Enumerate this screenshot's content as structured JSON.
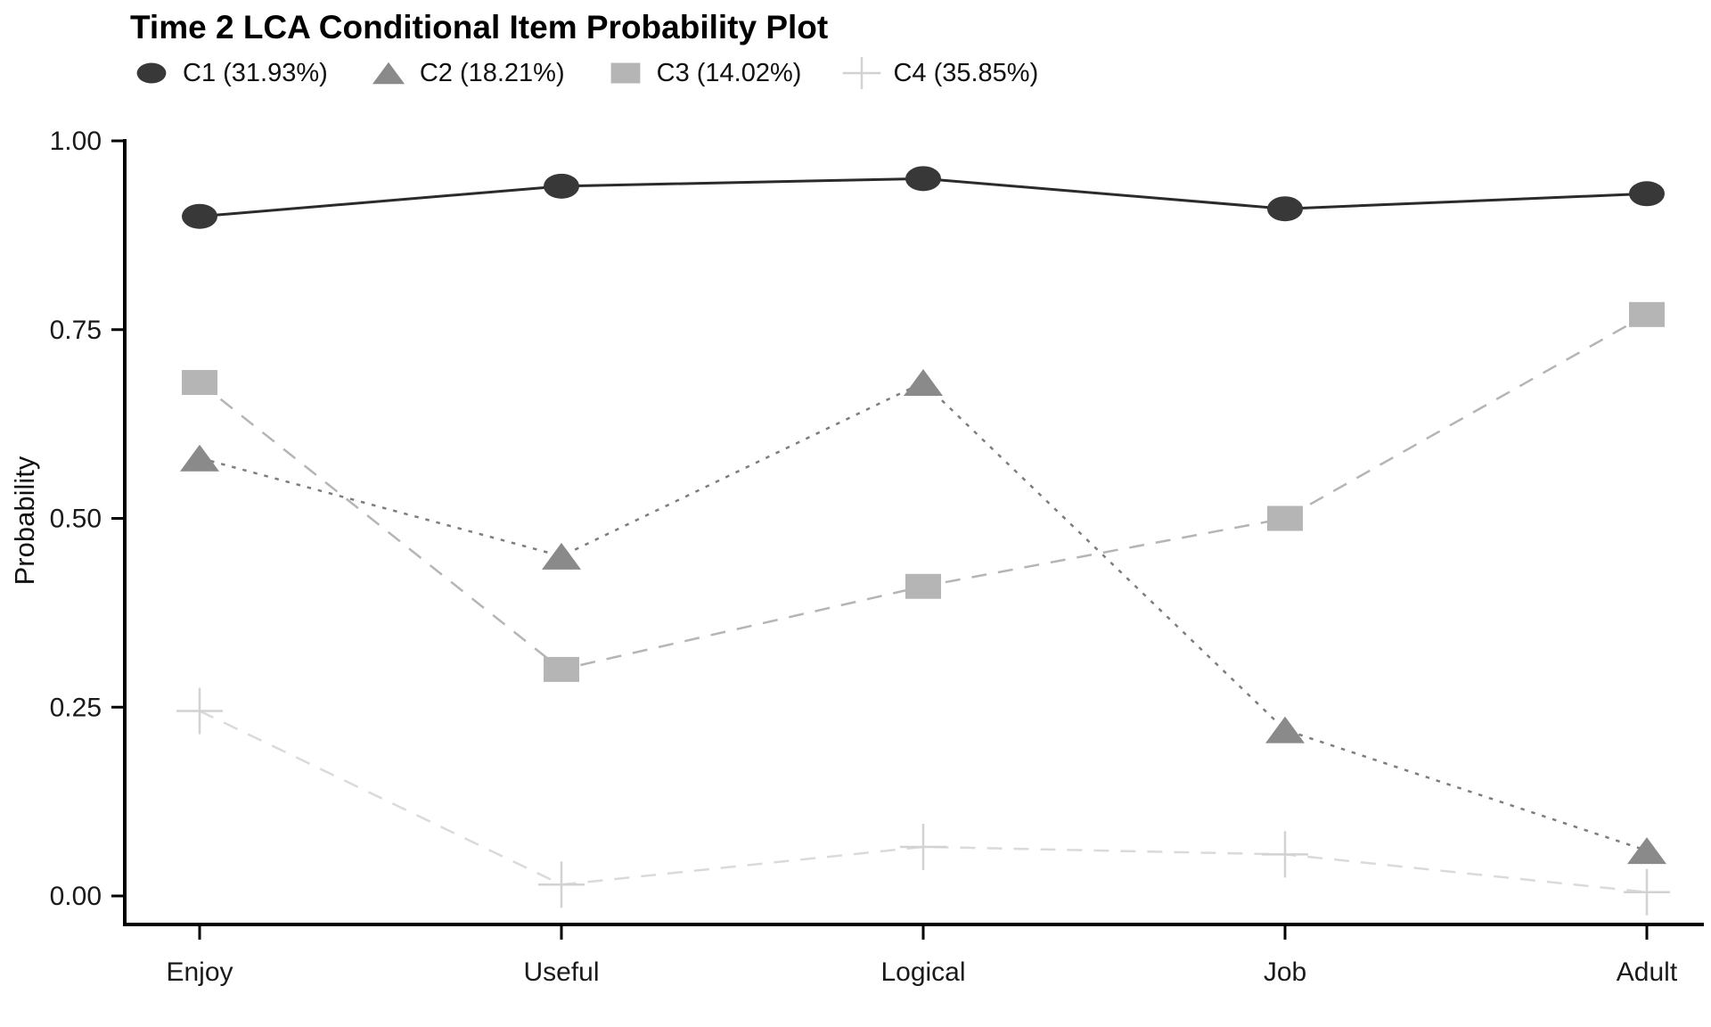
{
  "title": "Time 2 LCA Conditional Item Probability Plot",
  "chart_data": {
    "type": "line",
    "title": "Time 2 LCA Conditional Item Probability Plot",
    "categories": [
      "Enjoy",
      "Useful",
      "Logical",
      "Job",
      "Adult"
    ],
    "series": [
      {
        "name": "C1 (31.93%)",
        "marker": "circle",
        "line_style": "solid",
        "color": "#383838",
        "line_color": "#2b2b2b",
        "values": [
          0.9,
          0.94,
          0.95,
          0.91,
          0.93
        ]
      },
      {
        "name": "C2 (18.21%)",
        "marker": "triangle",
        "line_style": "dotted",
        "color": "#8a8a8a",
        "line_color": "#7d7d7d",
        "values": [
          0.58,
          0.45,
          0.68,
          0.22,
          0.06
        ]
      },
      {
        "name": "C3 (14.02%)",
        "marker": "square",
        "line_style": "dashed",
        "color": "#b5b5b5",
        "line_color": "#b5b5b5",
        "values": [
          0.68,
          0.3,
          0.41,
          0.5,
          0.77
        ]
      },
      {
        "name": "C4 (35.85%)",
        "marker": "plus",
        "line_style": "dashed",
        "color": "#d2d2d2",
        "line_color": "#dadada",
        "values": [
          0.245,
          0.015,
          0.065,
          0.055,
          0.005
        ]
      }
    ],
    "xlabel": "",
    "ylabel": "Probability",
    "ylim": [
      0,
      1
    ],
    "ytick_values": [
      1.0,
      0.75,
      0.5,
      0.25,
      0.0
    ],
    "ytick_labels": [
      "1.00",
      "0.75",
      "0.50",
      "0.25",
      "0.00"
    ],
    "grid": false,
    "legend_position": "top-left",
    "axis_color": "#000000",
    "tick_label_color": "#1a1a1a"
  }
}
